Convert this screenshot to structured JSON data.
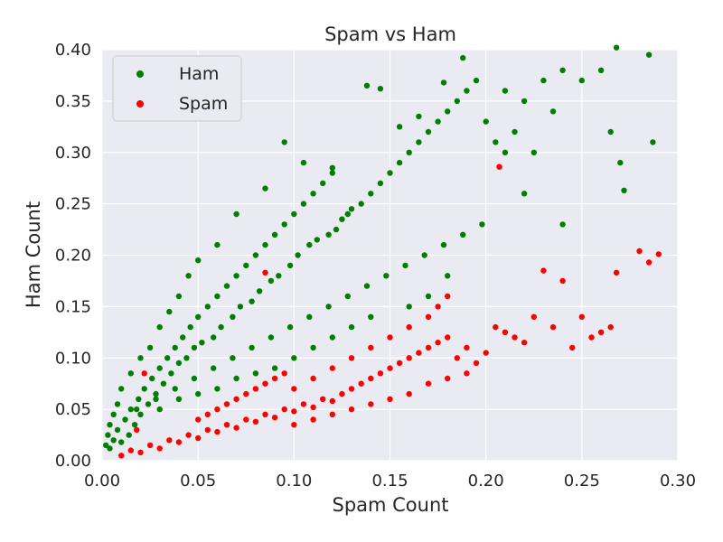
{
  "chart_data": {
    "type": "scatter",
    "title": "Spam vs Ham",
    "xlabel": "Spam Count",
    "ylabel": "Ham Count",
    "xlim": [
      0.0,
      0.3
    ],
    "ylim": [
      0.0,
      0.4
    ],
    "xticks": [
      "0.00",
      "0.05",
      "0.10",
      "0.15",
      "0.20",
      "0.25",
      "0.30"
    ],
    "yticks": [
      "0.00",
      "0.05",
      "0.10",
      "0.15",
      "0.20",
      "0.25",
      "0.30",
      "0.35",
      "0.40"
    ],
    "grid": true,
    "legend": "top-left",
    "series": [
      {
        "name": "Ham",
        "color": "#008000",
        "points": [
          [
            0.004,
            0.012
          ],
          [
            0.006,
            0.02
          ],
          [
            0.008,
            0.03
          ],
          [
            0.01,
            0.018
          ],
          [
            0.012,
            0.04
          ],
          [
            0.014,
            0.025
          ],
          [
            0.015,
            0.05
          ],
          [
            0.017,
            0.035
          ],
          [
            0.019,
            0.06
          ],
          [
            0.02,
            0.045
          ],
          [
            0.022,
            0.07
          ],
          [
            0.024,
            0.055
          ],
          [
            0.026,
            0.08
          ],
          [
            0.028,
            0.065
          ],
          [
            0.03,
            0.09
          ],
          [
            0.032,
            0.075
          ],
          [
            0.034,
            0.1
          ],
          [
            0.036,
            0.085
          ],
          [
            0.038,
            0.11
          ],
          [
            0.04,
            0.095
          ],
          [
            0.042,
            0.12
          ],
          [
            0.044,
            0.1
          ],
          [
            0.046,
            0.13
          ],
          [
            0.048,
            0.11
          ],
          [
            0.05,
            0.14
          ],
          [
            0.052,
            0.115
          ],
          [
            0.055,
            0.15
          ],
          [
            0.058,
            0.12
          ],
          [
            0.06,
            0.16
          ],
          [
            0.062,
            0.13
          ],
          [
            0.065,
            0.17
          ],
          [
            0.068,
            0.14
          ],
          [
            0.07,
            0.18
          ],
          [
            0.072,
            0.15
          ],
          [
            0.075,
            0.19
          ],
          [
            0.078,
            0.155
          ],
          [
            0.08,
            0.2
          ],
          [
            0.082,
            0.165
          ],
          [
            0.085,
            0.21
          ],
          [
            0.088,
            0.175
          ],
          [
            0.09,
            0.22
          ],
          [
            0.092,
            0.18
          ],
          [
            0.095,
            0.23
          ],
          [
            0.098,
            0.19
          ],
          [
            0.1,
            0.24
          ],
          [
            0.102,
            0.2
          ],
          [
            0.105,
            0.25
          ],
          [
            0.108,
            0.21
          ],
          [
            0.11,
            0.26
          ],
          [
            0.112,
            0.215
          ],
          [
            0.115,
            0.27
          ],
          [
            0.118,
            0.22
          ],
          [
            0.12,
            0.28
          ],
          [
            0.122,
            0.225
          ],
          [
            0.125,
            0.235
          ],
          [
            0.128,
            0.24
          ],
          [
            0.13,
            0.245
          ],
          [
            0.135,
            0.25
          ],
          [
            0.14,
            0.26
          ],
          [
            0.145,
            0.27
          ],
          [
            0.15,
            0.28
          ],
          [
            0.155,
            0.29
          ],
          [
            0.16,
            0.3
          ],
          [
            0.165,
            0.31
          ],
          [
            0.17,
            0.32
          ],
          [
            0.175,
            0.33
          ],
          [
            0.18,
            0.34
          ],
          [
            0.185,
            0.35
          ],
          [
            0.19,
            0.36
          ],
          [
            0.195,
            0.37
          ],
          [
            0.2,
            0.33
          ],
          [
            0.205,
            0.31
          ],
          [
            0.21,
            0.36
          ],
          [
            0.215,
            0.32
          ],
          [
            0.22,
            0.35
          ],
          [
            0.225,
            0.3
          ],
          [
            0.23,
            0.37
          ],
          [
            0.235,
            0.34
          ],
          [
            0.24,
            0.38
          ],
          [
            0.25,
            0.37
          ],
          [
            0.26,
            0.38
          ],
          [
            0.265,
            0.32
          ],
          [
            0.27,
            0.29
          ],
          [
            0.285,
            0.395
          ],
          [
            0.287,
            0.31
          ],
          [
            0.188,
            0.392
          ],
          [
            0.268,
            0.402
          ],
          [
            0.145,
            0.362
          ],
          [
            0.138,
            0.365
          ],
          [
            0.178,
            0.368
          ],
          [
            0.095,
            0.31
          ],
          [
            0.105,
            0.29
          ],
          [
            0.085,
            0.265
          ],
          [
            0.12,
            0.285
          ],
          [
            0.155,
            0.325
          ],
          [
            0.165,
            0.335
          ],
          [
            0.21,
            0.3
          ],
          [
            0.22,
            0.26
          ],
          [
            0.24,
            0.23
          ],
          [
            0.272,
            0.263
          ],
          [
            0.07,
            0.24
          ],
          [
            0.06,
            0.21
          ],
          [
            0.05,
            0.195
          ],
          [
            0.045,
            0.18
          ],
          [
            0.04,
            0.16
          ],
          [
            0.035,
            0.145
          ],
          [
            0.03,
            0.13
          ],
          [
            0.025,
            0.11
          ],
          [
            0.02,
            0.1
          ],
          [
            0.015,
            0.085
          ],
          [
            0.01,
            0.07
          ],
          [
            0.008,
            0.055
          ],
          [
            0.006,
            0.045
          ],
          [
            0.004,
            0.035
          ],
          [
            0.003,
            0.025
          ],
          [
            0.002,
            0.015
          ],
          [
            0.018,
            0.05
          ],
          [
            0.028,
            0.06
          ],
          [
            0.038,
            0.07
          ],
          [
            0.048,
            0.08
          ],
          [
            0.058,
            0.09
          ],
          [
            0.068,
            0.1
          ],
          [
            0.078,
            0.11
          ],
          [
            0.088,
            0.12
          ],
          [
            0.098,
            0.13
          ],
          [
            0.108,
            0.14
          ],
          [
            0.118,
            0.15
          ],
          [
            0.128,
            0.16
          ],
          [
            0.138,
            0.17
          ],
          [
            0.148,
            0.18
          ],
          [
            0.158,
            0.19
          ],
          [
            0.168,
            0.2
          ],
          [
            0.178,
            0.21
          ],
          [
            0.188,
            0.22
          ],
          [
            0.198,
            0.23
          ],
          [
            0.16,
            0.15
          ],
          [
            0.17,
            0.16
          ],
          [
            0.18,
            0.18
          ],
          [
            0.14,
            0.14
          ],
          [
            0.13,
            0.13
          ],
          [
            0.12,
            0.12
          ],
          [
            0.11,
            0.11
          ],
          [
            0.1,
            0.1
          ],
          [
            0.09,
            0.09
          ],
          [
            0.08,
            0.085
          ],
          [
            0.07,
            0.08
          ],
          [
            0.06,
            0.07
          ],
          [
            0.05,
            0.065
          ],
          [
            0.04,
            0.06
          ],
          [
            0.03,
            0.05
          ]
        ]
      },
      {
        "name": "Spam",
        "color": "#ff0000",
        "points": [
          [
            0.01,
            0.005
          ],
          [
            0.015,
            0.01
          ],
          [
            0.02,
            0.008
          ],
          [
            0.025,
            0.015
          ],
          [
            0.03,
            0.012
          ],
          [
            0.035,
            0.02
          ],
          [
            0.04,
            0.018
          ],
          [
            0.045,
            0.025
          ],
          [
            0.05,
            0.022
          ],
          [
            0.055,
            0.03
          ],
          [
            0.06,
            0.028
          ],
          [
            0.065,
            0.035
          ],
          [
            0.07,
            0.032
          ],
          [
            0.075,
            0.04
          ],
          [
            0.08,
            0.038
          ],
          [
            0.085,
            0.045
          ],
          [
            0.09,
            0.042
          ],
          [
            0.095,
            0.05
          ],
          [
            0.1,
            0.048
          ],
          [
            0.105,
            0.055
          ],
          [
            0.11,
            0.052
          ],
          [
            0.115,
            0.06
          ],
          [
            0.12,
            0.058
          ],
          [
            0.125,
            0.065
          ],
          [
            0.13,
            0.07
          ],
          [
            0.135,
            0.075
          ],
          [
            0.14,
            0.08
          ],
          [
            0.145,
            0.085
          ],
          [
            0.15,
            0.09
          ],
          [
            0.155,
            0.095
          ],
          [
            0.16,
            0.1
          ],
          [
            0.165,
            0.105
          ],
          [
            0.17,
            0.11
          ],
          [
            0.175,
            0.115
          ],
          [
            0.18,
            0.12
          ],
          [
            0.185,
            0.1
          ],
          [
            0.19,
            0.11
          ],
          [
            0.195,
            0.095
          ],
          [
            0.2,
            0.105
          ],
          [
            0.205,
            0.13
          ],
          [
            0.21,
            0.125
          ],
          [
            0.215,
            0.12
          ],
          [
            0.22,
            0.115
          ],
          [
            0.225,
            0.14
          ],
          [
            0.23,
            0.185
          ],
          [
            0.235,
            0.13
          ],
          [
            0.24,
            0.175
          ],
          [
            0.245,
            0.11
          ],
          [
            0.25,
            0.14
          ],
          [
            0.255,
            0.12
          ],
          [
            0.26,
            0.125
          ],
          [
            0.265,
            0.13
          ],
          [
            0.268,
            0.183
          ],
          [
            0.28,
            0.204
          ],
          [
            0.285,
            0.193
          ],
          [
            0.29,
            0.201
          ],
          [
            0.207,
            0.286
          ],
          [
            0.085,
            0.183
          ],
          [
            0.022,
            0.085
          ],
          [
            0.018,
            0.03
          ],
          [
            0.1,
            0.07
          ],
          [
            0.11,
            0.08
          ],
          [
            0.12,
            0.09
          ],
          [
            0.13,
            0.1
          ],
          [
            0.14,
            0.11
          ],
          [
            0.15,
            0.12
          ],
          [
            0.16,
            0.13
          ],
          [
            0.17,
            0.14
          ],
          [
            0.175,
            0.15
          ],
          [
            0.18,
            0.16
          ],
          [
            0.05,
            0.04
          ],
          [
            0.055,
            0.045
          ],
          [
            0.06,
            0.05
          ],
          [
            0.065,
            0.055
          ],
          [
            0.07,
            0.06
          ],
          [
            0.075,
            0.065
          ],
          [
            0.08,
            0.07
          ],
          [
            0.085,
            0.075
          ],
          [
            0.09,
            0.08
          ],
          [
            0.095,
            0.085
          ],
          [
            0.1,
            0.035
          ],
          [
            0.11,
            0.04
          ],
          [
            0.12,
            0.045
          ],
          [
            0.13,
            0.05
          ],
          [
            0.14,
            0.055
          ],
          [
            0.15,
            0.06
          ],
          [
            0.16,
            0.065
          ],
          [
            0.17,
            0.075
          ],
          [
            0.18,
            0.08
          ],
          [
            0.19,
            0.085
          ]
        ]
      }
    ]
  }
}
